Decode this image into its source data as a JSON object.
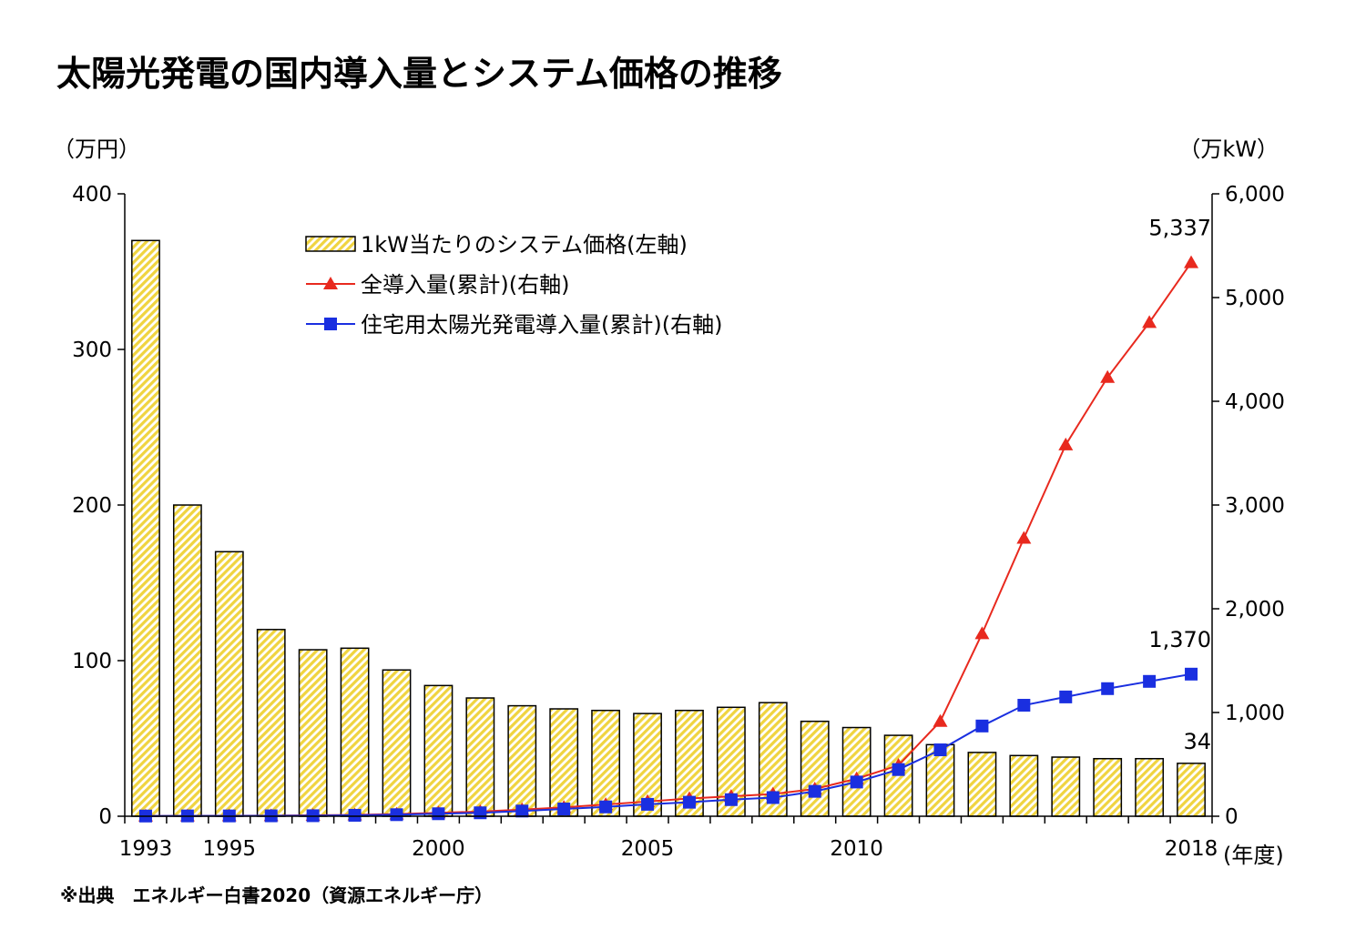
{
  "title": "太陽光発電の国内導入量とシステム価格の推移",
  "source": "※出典　エネルギー白書2020（資源エネルギー庁）",
  "chart_data": {
    "type": "bar+line",
    "years": [
      1993,
      1994,
      1995,
      1996,
      1997,
      1998,
      1999,
      2000,
      2001,
      2002,
      2003,
      2004,
      2005,
      2006,
      2007,
      2008,
      2009,
      2010,
      2011,
      2012,
      2013,
      2014,
      2015,
      2016,
      2017,
      2018
    ],
    "x_tick_labels": [
      {
        "year": 1993,
        "label": "1993"
      },
      {
        "year": 1995,
        "label": "1995"
      },
      {
        "year": 2000,
        "label": "2000"
      },
      {
        "year": 2005,
        "label": "2005"
      },
      {
        "year": 2010,
        "label": "2010"
      },
      {
        "year": 2018,
        "label": "2018"
      }
    ],
    "x_unit": "(年度)",
    "y_left": {
      "unit": "（万円）",
      "range": [
        0,
        400
      ],
      "ticks": [
        "0",
        "100",
        "200",
        "300",
        "400"
      ]
    },
    "y_right": {
      "unit": "（万kW）",
      "range": [
        0,
        6000
      ],
      "ticks": [
        "0",
        "1,000",
        "2,000",
        "3,000",
        "4,000",
        "5,000",
        "6,000"
      ]
    },
    "series": [
      {
        "name": "1kW当たりのシステム価格(左軸)",
        "kind": "bar",
        "axis": "left",
        "color": "#f0d440",
        "values": [
          370,
          200,
          170,
          120,
          107,
          108,
          94,
          84,
          76,
          71,
          69,
          68,
          66,
          68,
          70,
          73,
          61,
          57,
          52,
          46,
          41,
          39,
          38,
          37,
          37,
          34
        ]
      },
      {
        "name": "全導入量(累計)(右軸)",
        "kind": "line",
        "axis": "right",
        "color": "#e8291e",
        "marker": "triangle",
        "values": [
          2,
          3,
          4,
          6,
          9,
          13,
          21,
          33,
          45,
          64,
          86,
          113,
          142,
          171,
          192,
          214,
          263,
          362,
          491,
          914,
          1760,
          2680,
          3580,
          4230,
          4760,
          5337
        ]
      },
      {
        "name": "住宅用太陽光発電導入量(累計)(右軸)",
        "kind": "line",
        "axis": "right",
        "color": "#1a2fe0",
        "marker": "square",
        "values": [
          2,
          3,
          3,
          4,
          5,
          9,
          15,
          24,
          33,
          50,
          70,
          90,
          115,
          135,
          160,
          180,
          240,
          330,
          450,
          640,
          870,
          1070,
          1150,
          1230,
          1300,
          1370
        ]
      }
    ],
    "annotations": [
      {
        "series": 1,
        "year": 2018,
        "text": "5,337"
      },
      {
        "series": 2,
        "year": 2018,
        "text": "1,370"
      },
      {
        "series": 0,
        "year": 2018,
        "text": "34"
      }
    ]
  }
}
